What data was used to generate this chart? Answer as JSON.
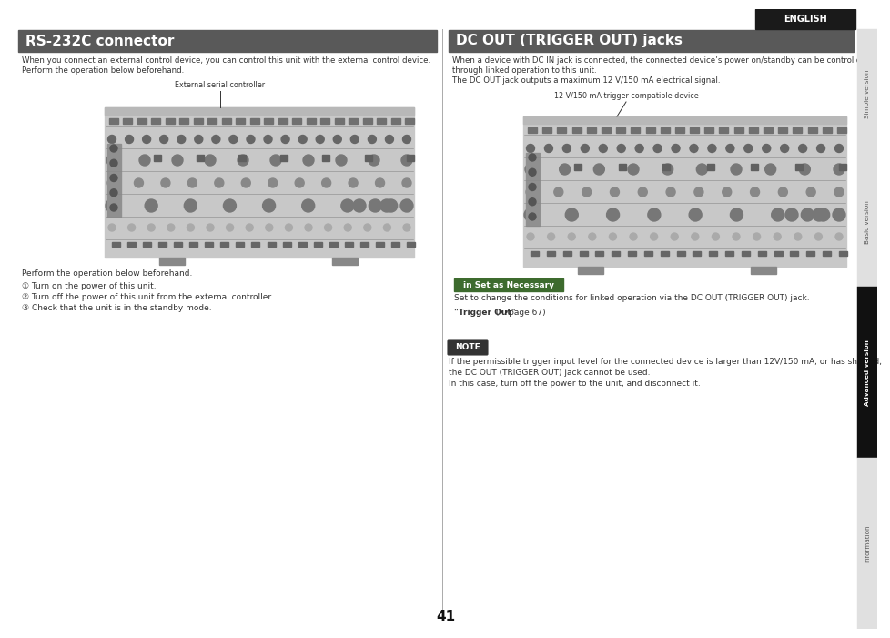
{
  "page_bg": "#ffffff",
  "title_bar_bg": "#595959",
  "title_bar_text_color": "#ffffff",
  "title1": "RS-232C connector",
  "title2": "DC OUT (TRIGGER OUT) jacks",
  "english_bar_bg": "#1a1a1a",
  "english_text": "ENGLISH",
  "english_text_color": "#ffffff",
  "sidebar_labels": [
    "Simple version",
    "Basic version",
    "Advanced version",
    "Information"
  ],
  "sidebar_active_idx": 2,
  "sidebar_active_bg": "#111111",
  "sidebar_inactive_bg": "#e0e0e0",
  "sidebar_active_text": "#ffffff",
  "sidebar_inactive_text": "#555555",
  "page_number": "41",
  "section1_body1": "When you connect an external control device, you can control this unit with the external control device.",
  "section1_body2": "Perform the operation below beforehand.",
  "section1_label": "External serial controller",
  "section1_steps_header": "Perform the operation below beforehand.",
  "section1_steps": [
    "① Turn on the power of this unit.",
    "② Turn off the power of this unit from the external controller.",
    "③ Check that the unit is in the standby mode."
  ],
  "section2_body1": "When a device with DC IN jack is connected, the connected device’s power on/standby can be controlled",
  "section2_body2": "through linked operation to this unit.",
  "section2_body3": "The DC OUT jack outputs a maximum 12 V/150 mA electrical signal.",
  "section2_label": "12 V/150 mA trigger-compatible device",
  "in_set_header": "in Set as Necessary",
  "in_set_header_bg": "#3d6b2e",
  "in_set_header_text": "#ffffff",
  "in_set_body1": "Set to change the conditions for linked operation via the DC OUT (TRIGGER OUT) jack.",
  "in_set_body2_bold": "\"Trigger Out\"",
  "in_set_body2_rest": " (••page 67)",
  "note_header": "NOTE",
  "note_header_bg": "#333333",
  "note_header_text": "#ffffff",
  "note_body1": "If the permissible trigger input level for the connected device is larger than 12V/150 mA, or has shorted,",
  "note_body2": "the DC OUT (TRIGGER OUT) jack cannot be used.",
  "note_body3": "In this case, turn off the power to the unit, and disconnect it.",
  "divider_color": "#aaaaaa",
  "image_bg": "#c8c8c8",
  "image_border": "#777777",
  "callout_line_color": "#333333",
  "connector_dark": "#555555",
  "connector_mid": "#888888",
  "connector_light": "#aaaaaa"
}
